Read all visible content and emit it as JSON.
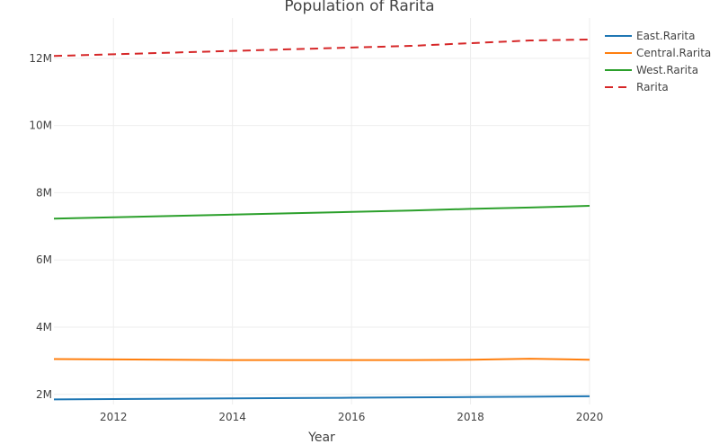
{
  "chart_data": {
    "type": "line",
    "title": "Population of Rarita",
    "xlabel": "Year",
    "ylabel": "",
    "x": [
      2011,
      2012,
      2013,
      2014,
      2015,
      2016,
      2017,
      2018,
      2019,
      2020
    ],
    "xlim": [
      2011,
      2020
    ],
    "ylim": [
      1700000,
      13200000
    ],
    "x_ticks": [
      {
        "value": 2012,
        "label": "2012"
      },
      {
        "value": 2014,
        "label": "2014"
      },
      {
        "value": 2016,
        "label": "2016"
      },
      {
        "value": 2018,
        "label": "2018"
      },
      {
        "value": 2020,
        "label": "2020"
      }
    ],
    "y_ticks": [
      {
        "value": 2000000,
        "label": "2M"
      },
      {
        "value": 4000000,
        "label": "4M"
      },
      {
        "value": 6000000,
        "label": "6M"
      },
      {
        "value": 8000000,
        "label": "8M"
      },
      {
        "value": 10000000,
        "label": "10M"
      },
      {
        "value": 12000000,
        "label": "12M"
      }
    ],
    "grid": true,
    "legend_position": "top-right",
    "series": [
      {
        "name": "East.Rarita",
        "color": "#1f77b4",
        "dash": "solid",
        "values": [
          1850000,
          1860000,
          1870000,
          1880000,
          1890000,
          1900000,
          1910000,
          1920000,
          1930000,
          1945000
        ]
      },
      {
        "name": "Central.Rarita",
        "color": "#ff7f0e",
        "dash": "solid",
        "values": [
          3050000,
          3040000,
          3030000,
          3020000,
          3020000,
          3020000,
          3020000,
          3030000,
          3060000,
          3030000
        ]
      },
      {
        "name": "West.Rarita",
        "color": "#2ca02c",
        "dash": "solid",
        "values": [
          7230000,
          7270000,
          7310000,
          7350000,
          7390000,
          7430000,
          7470000,
          7520000,
          7560000,
          7610000
        ]
      },
      {
        "name": "Rarita",
        "color": "#d62728",
        "dash": "dash",
        "values": [
          12070000,
          12120000,
          12170000,
          12220000,
          12270000,
          12320000,
          12370000,
          12450000,
          12530000,
          12560000
        ]
      }
    ]
  }
}
